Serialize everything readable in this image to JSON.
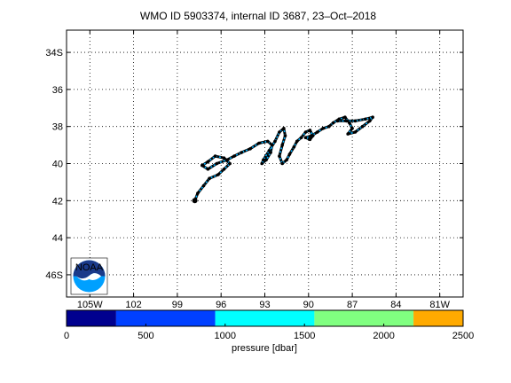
{
  "title": "WMO ID 5903374, internal ID 3687, 23–Oct–2018",
  "map": {
    "lat_labels": [
      "34S",
      "36",
      "38",
      "40",
      "42",
      "44",
      "46S"
    ],
    "lat_values": [
      -34,
      -36,
      -38,
      -40,
      -42,
      -44,
      -46
    ],
    "lon_labels": [
      "105W",
      "102",
      "99",
      "96",
      "93",
      "90",
      "87",
      "84",
      "81W"
    ],
    "lon_values": [
      -105,
      -102,
      -99,
      -96,
      -93,
      -90,
      -87,
      -84,
      -81
    ],
    "lon_range": [
      -106.6,
      -79.4
    ],
    "lat_range": [
      -47.2,
      -32.8
    ],
    "grid": true,
    "track_color_dark": "#000000",
    "track_color_light": "#00b0ff"
  },
  "track": {
    "lon": [
      -97.8,
      -97.6,
      -97.2,
      -96.8,
      -96.2,
      -95.8,
      -95.4,
      -95.8,
      -96.4,
      -96.9,
      -97.3,
      -96.9,
      -96.3,
      -95.6,
      -95.1,
      -94.6,
      -94.0,
      -93.4,
      -92.8,
      -92.5,
      -92.6,
      -92.9,
      -93.2,
      -93.1,
      -92.7,
      -92.3,
      -92.0,
      -91.7,
      -91.6,
      -91.8,
      -92.0,
      -91.8,
      -91.5,
      -91.3,
      -91.0,
      -90.8,
      -90.5,
      -90.2,
      -89.9,
      -89.7,
      -89.9,
      -90.2,
      -89.8,
      -89.4,
      -89.0,
      -88.6,
      -88.3,
      -87.9,
      -87.5,
      -87.2,
      -87.0,
      -87.3,
      -86.8,
      -86.3,
      -85.8,
      -85.6,
      -86.1,
      -86.8,
      -87.4,
      -88.0
    ],
    "lat": [
      -42.0,
      -41.6,
      -41.2,
      -40.8,
      -40.6,
      -40.3,
      -40.0,
      -39.7,
      -39.6,
      -39.9,
      -40.1,
      -40.3,
      -40.0,
      -39.8,
      -39.6,
      -39.4,
      -39.2,
      -38.9,
      -38.8,
      -39.0,
      -39.4,
      -39.8,
      -40.0,
      -39.8,
      -39.3,
      -38.8,
      -38.3,
      -38.1,
      -38.5,
      -39.0,
      -39.6,
      -40.0,
      -39.8,
      -39.5,
      -39.1,
      -38.8,
      -38.6,
      -38.3,
      -38.2,
      -38.5,
      -38.7,
      -38.6,
      -38.5,
      -38.3,
      -38.1,
      -38.0,
      -37.8,
      -37.6,
      -37.5,
      -37.8,
      -38.1,
      -38.4,
      -38.3,
      -38.0,
      -37.7,
      -37.5,
      -37.6,
      -37.7,
      -37.7,
      -37.7
    ]
  },
  "colorbar": {
    "label": "pressure [dbar]",
    "min": 0,
    "max": 2500,
    "tick_labels": [
      "0",
      "500",
      "1000",
      "1500",
      "2000",
      "2500"
    ],
    "tick_values": [
      0,
      500,
      1000,
      1500,
      2000,
      2500
    ],
    "bands": [
      {
        "from": 0,
        "to": 312.5,
        "color": "#00008f"
      },
      {
        "from": 312.5,
        "to": 937.5,
        "color": "#0040ff"
      },
      {
        "from": 937.5,
        "to": 1562.5,
        "color": "#00ffff"
      },
      {
        "from": 1562.5,
        "to": 2187.5,
        "color": "#80ff80"
      },
      {
        "from": 2187.5,
        "to": 2500,
        "color": "#ffaa00"
      }
    ]
  },
  "logo": {
    "text": "NOAA",
    "icon": "noaa-logo-icon",
    "colors": {
      "top": "#1a3a8a",
      "bottom": "#00a0ff",
      "wave": "#ffffff"
    }
  }
}
